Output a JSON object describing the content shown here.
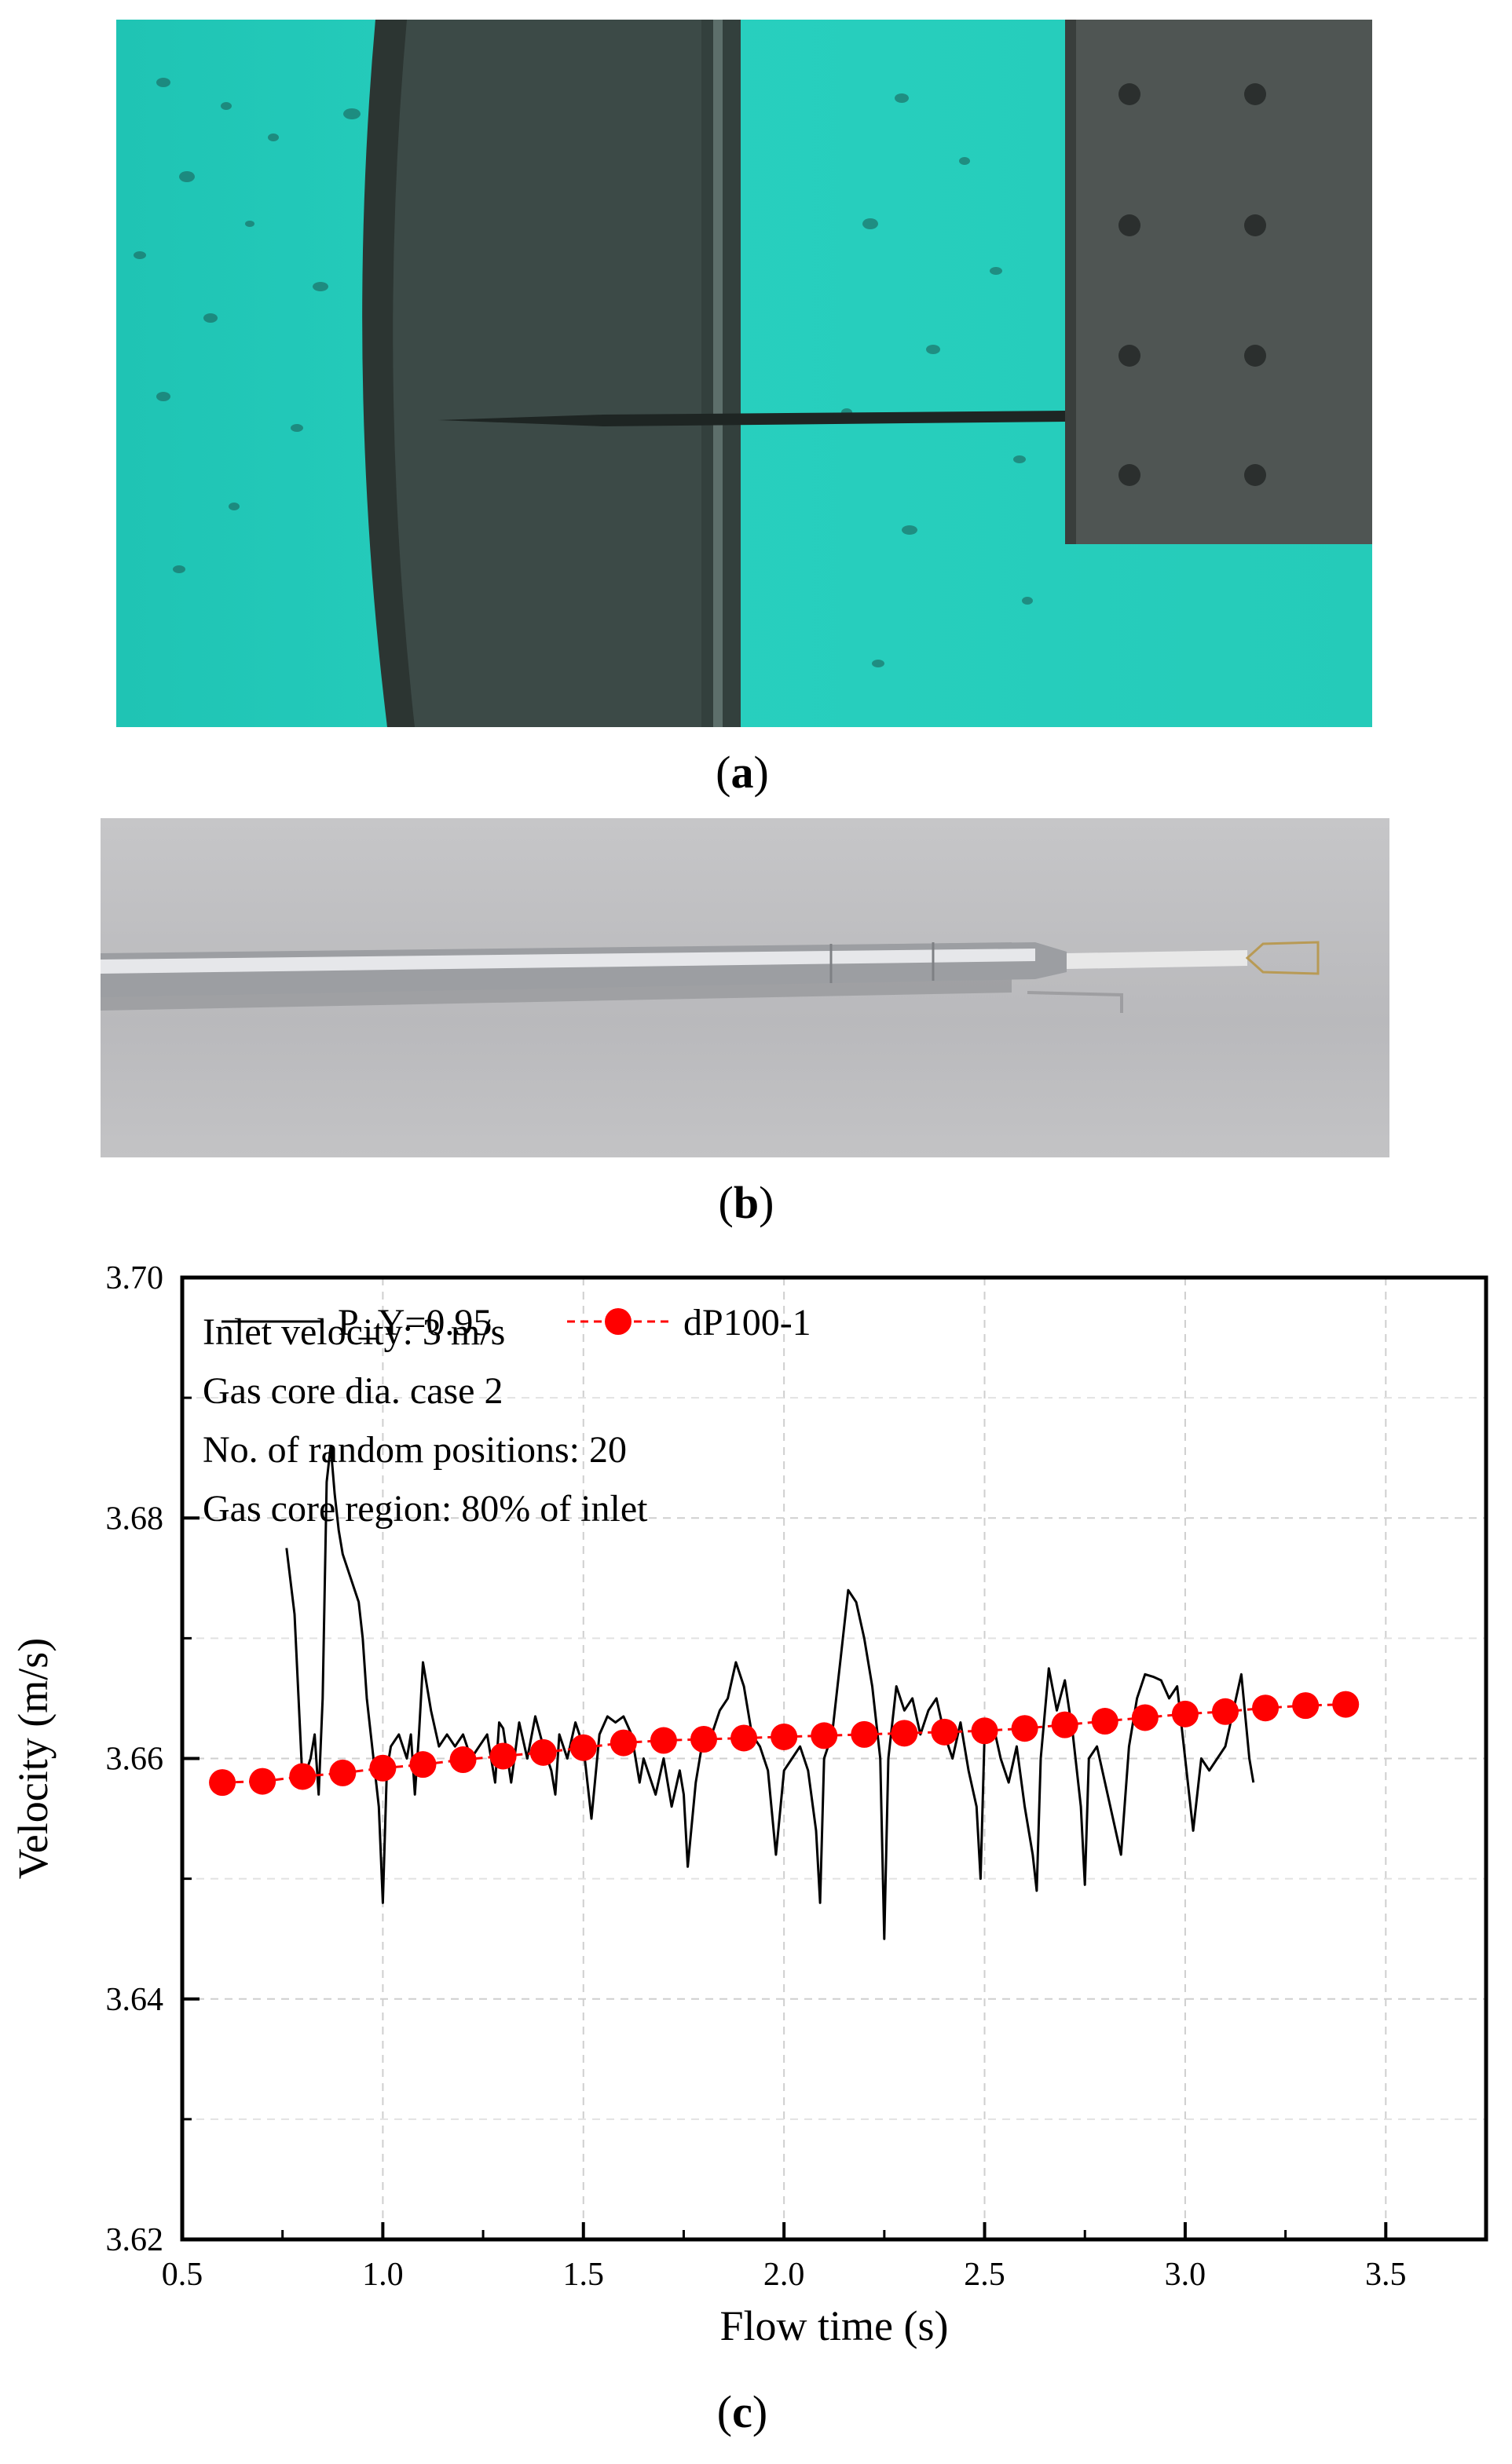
{
  "figure": {
    "panels": [
      {
        "label": "a",
        "kind": "photo"
      },
      {
        "label": "b",
        "kind": "photo"
      },
      {
        "label": "c",
        "kind": "chart"
      }
    ]
  },
  "chart_data": {
    "type": "line",
    "xlabel": "Flow time (s)",
    "ylabel": "Velocity (m/s)",
    "xlim": [
      0.5,
      3.75
    ],
    "ylim": [
      3.62,
      3.7
    ],
    "xticks": [
      "0.5",
      "1.0",
      "1.5",
      "2.0",
      "2.5",
      "3.0",
      "3.5"
    ],
    "xtick_values": [
      0.5,
      1.0,
      1.5,
      2.0,
      2.5,
      3.0,
      3.5
    ],
    "yticks": [
      "3.62",
      "3.64",
      "3.66",
      "3.68",
      "3.70"
    ],
    "ytick_values": [
      3.62,
      3.64,
      3.66,
      3.68,
      3.7
    ],
    "grid": true,
    "legend_position": "top-left",
    "series": [
      {
        "name": "P_Y=0.95",
        "style": "line",
        "color": "#000000",
        "x": [
          0.76,
          0.78,
          0.8,
          0.82,
          0.83,
          0.84,
          0.85,
          0.86,
          0.87,
          0.88,
          0.89,
          0.9,
          0.92,
          0.94,
          0.95,
          0.96,
          0.97,
          0.98,
          0.99,
          1.0,
          1.01,
          1.02,
          1.04,
          1.06,
          1.07,
          1.08,
          1.09,
          1.1,
          1.12,
          1.14,
          1.16,
          1.18,
          1.2,
          1.22,
          1.24,
          1.26,
          1.28,
          1.29,
          1.3,
          1.32,
          1.34,
          1.36,
          1.38,
          1.4,
          1.42,
          1.43,
          1.44,
          1.46,
          1.48,
          1.5,
          1.52,
          1.54,
          1.56,
          1.58,
          1.6,
          1.62,
          1.64,
          1.65,
          1.66,
          1.68,
          1.7,
          1.72,
          1.74,
          1.75,
          1.76,
          1.78,
          1.8,
          1.82,
          1.84,
          1.86,
          1.88,
          1.9,
          1.92,
          1.94,
          1.96,
          1.98,
          2.0,
          2.02,
          2.04,
          2.06,
          2.08,
          2.09,
          2.1,
          2.12,
          2.14,
          2.16,
          2.18,
          2.2,
          2.22,
          2.24,
          2.25,
          2.26,
          2.28,
          2.3,
          2.32,
          2.34,
          2.36,
          2.38,
          2.4,
          2.42,
          2.44,
          2.46,
          2.48,
          2.49,
          2.5,
          2.52,
          2.54,
          2.56,
          2.58,
          2.6,
          2.62,
          2.63,
          2.64,
          2.66,
          2.68,
          2.7,
          2.72,
          2.74,
          2.75,
          2.76,
          2.78,
          2.8,
          2.82,
          2.84,
          2.86,
          2.88,
          2.9,
          2.92,
          2.94,
          2.96,
          2.98,
          3.0,
          3.02,
          3.04,
          3.06,
          3.08,
          3.1,
          3.12,
          3.14,
          3.16,
          3.17
        ],
        "y": [
          3.6775,
          3.672,
          3.658,
          3.66,
          3.662,
          3.657,
          3.665,
          3.683,
          3.686,
          3.682,
          3.679,
          3.677,
          3.675,
          3.673,
          3.67,
          3.665,
          3.662,
          3.659,
          3.656,
          3.648,
          3.659,
          3.661,
          3.662,
          3.66,
          3.662,
          3.657,
          3.662,
          3.668,
          3.664,
          3.661,
          3.662,
          3.661,
          3.662,
          3.66,
          3.661,
          3.662,
          3.658,
          3.663,
          3.6625,
          3.658,
          3.663,
          3.66,
          3.6635,
          3.661,
          3.659,
          3.657,
          3.662,
          3.66,
          3.663,
          3.661,
          3.655,
          3.662,
          3.6635,
          3.663,
          3.6635,
          3.662,
          3.658,
          3.66,
          3.659,
          3.657,
          3.66,
          3.656,
          3.659,
          3.657,
          3.651,
          3.658,
          3.662,
          3.662,
          3.664,
          3.665,
          3.668,
          3.666,
          3.662,
          3.661,
          3.659,
          3.652,
          3.659,
          3.66,
          3.661,
          3.659,
          3.654,
          3.648,
          3.66,
          3.662,
          3.668,
          3.674,
          3.673,
          3.67,
          3.666,
          3.66,
          3.645,
          3.66,
          3.666,
          3.664,
          3.665,
          3.662,
          3.664,
          3.665,
          3.662,
          3.66,
          3.663,
          3.659,
          3.656,
          3.65,
          3.662,
          3.663,
          3.66,
          3.658,
          3.661,
          3.656,
          3.652,
          3.649,
          3.66,
          3.6675,
          3.664,
          3.6665,
          3.662,
          3.656,
          3.6495,
          3.66,
          3.661,
          3.658,
          3.655,
          3.652,
          3.661,
          3.665,
          3.667,
          3.6668,
          3.6665,
          3.665,
          3.666,
          3.66,
          3.654,
          3.66,
          3.659,
          3.66,
          3.661,
          3.664,
          3.667,
          3.66,
          3.658
        ]
      },
      {
        "name": "dP100-1",
        "style": "line-markers",
        "color": "#ff0000",
        "x": [
          0.6,
          0.7,
          0.8,
          0.9,
          1.0,
          1.1,
          1.2,
          1.3,
          1.4,
          1.5,
          1.6,
          1.7,
          1.8,
          1.9,
          2.0,
          2.1,
          2.2,
          2.3,
          2.4,
          2.5,
          2.6,
          2.7,
          2.8,
          2.9,
          3.0,
          3.1,
          3.2,
          3.3,
          3.4
        ],
        "y": [
          3.658,
          3.6581,
          3.6585,
          3.6588,
          3.6592,
          3.6595,
          3.6599,
          3.6602,
          3.6605,
          3.6609,
          3.6613,
          3.6615,
          3.6616,
          3.6617,
          3.6618,
          3.6619,
          3.662,
          3.6621,
          3.6622,
          3.6623,
          3.6625,
          3.6628,
          3.6631,
          3.6634,
          3.6637,
          3.6639,
          3.6642,
          3.6644,
          3.6645
        ]
      }
    ],
    "annotations": [
      "Inlet velocity: 3 m/s",
      "Gas core dia.  case 2",
      "No. of random positions: 20",
      "Gas core region: 80% of inlet"
    ]
  }
}
